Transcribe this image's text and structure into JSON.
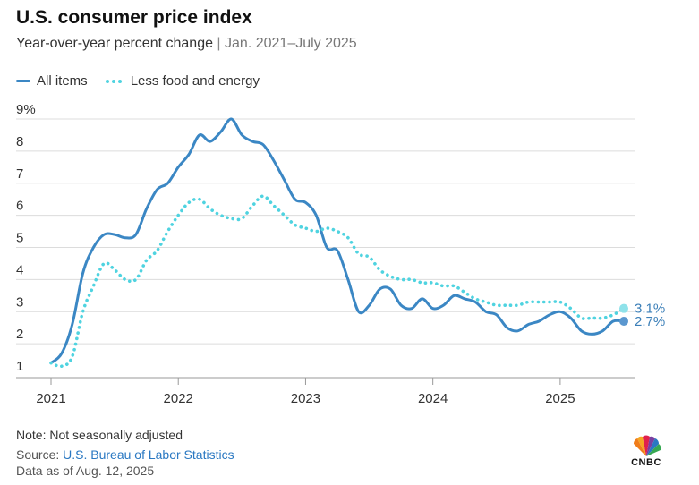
{
  "header": {
    "title": "U.S. consumer price index",
    "subtitle_main": "Year-over-year percent change",
    "subtitle_sep": " | ",
    "subtitle_range": "Jan. 2021–July 2025"
  },
  "legend": {
    "items": [
      {
        "label": "All items",
        "style": "solid",
        "color": "#3b87c4"
      },
      {
        "label": "Less food and energy",
        "style": "dotted",
        "color": "#4fd3e0"
      }
    ]
  },
  "footer": {
    "note": "Note: Not seasonally adjusted",
    "source_label": "Source: ",
    "source_link": "U.S. Bureau of Labor Statistics",
    "as_of": "Data as of Aug. 12, 2025"
  },
  "logo": {
    "text": "CNBC",
    "icon": "peacock-logo-icon"
  },
  "chart_data": {
    "type": "line",
    "x_start": "2021-01",
    "x_frequency": "monthly",
    "xlim": [
      "2021-01",
      "2025-07"
    ],
    "ylim": [
      1,
      9
    ],
    "y_ticks": [
      "1",
      "2",
      "3",
      "4",
      "5",
      "6",
      "7",
      "8",
      "9%"
    ],
    "x_ticks": [
      "2021",
      "2022",
      "2023",
      "2024",
      "2025"
    ],
    "grid": true,
    "legend_position": "top-left",
    "series": [
      {
        "name": "All items",
        "style": "solid",
        "color": "#3b87c4",
        "end_label": "2.7%",
        "values": [
          1.4,
          1.7,
          2.6,
          4.2,
          5.0,
          5.4,
          5.4,
          5.3,
          5.4,
          6.2,
          6.8,
          7.0,
          7.5,
          7.9,
          8.5,
          8.3,
          8.6,
          9.0,
          8.5,
          8.3,
          8.2,
          7.7,
          7.1,
          6.5,
          6.4,
          6.0,
          5.0,
          4.9,
          4.0,
          3.0,
          3.2,
          3.7,
          3.7,
          3.2,
          3.1,
          3.4,
          3.1,
          3.2,
          3.5,
          3.4,
          3.3,
          3.0,
          2.9,
          2.5,
          2.4,
          2.6,
          2.7,
          2.9,
          3.0,
          2.8,
          2.4,
          2.3,
          2.4,
          2.7,
          2.7
        ]
      },
      {
        "name": "Less food and energy",
        "style": "dotted",
        "color": "#4fd3e0",
        "end_label": "3.1%",
        "values": [
          1.4,
          1.3,
          1.6,
          3.0,
          3.8,
          4.5,
          4.3,
          4.0,
          4.0,
          4.6,
          4.9,
          5.5,
          6.0,
          6.4,
          6.5,
          6.2,
          6.0,
          5.9,
          5.9,
          6.3,
          6.6,
          6.3,
          6.0,
          5.7,
          5.6,
          5.5,
          5.6,
          5.5,
          5.3,
          4.8,
          4.7,
          4.3,
          4.1,
          4.0,
          4.0,
          3.9,
          3.9,
          3.8,
          3.8,
          3.6,
          3.4,
          3.3,
          3.2,
          3.2,
          3.2,
          3.3,
          3.3,
          3.3,
          3.3,
          3.1,
          2.8,
          2.8,
          2.8,
          2.9,
          3.1
        ]
      }
    ]
  }
}
